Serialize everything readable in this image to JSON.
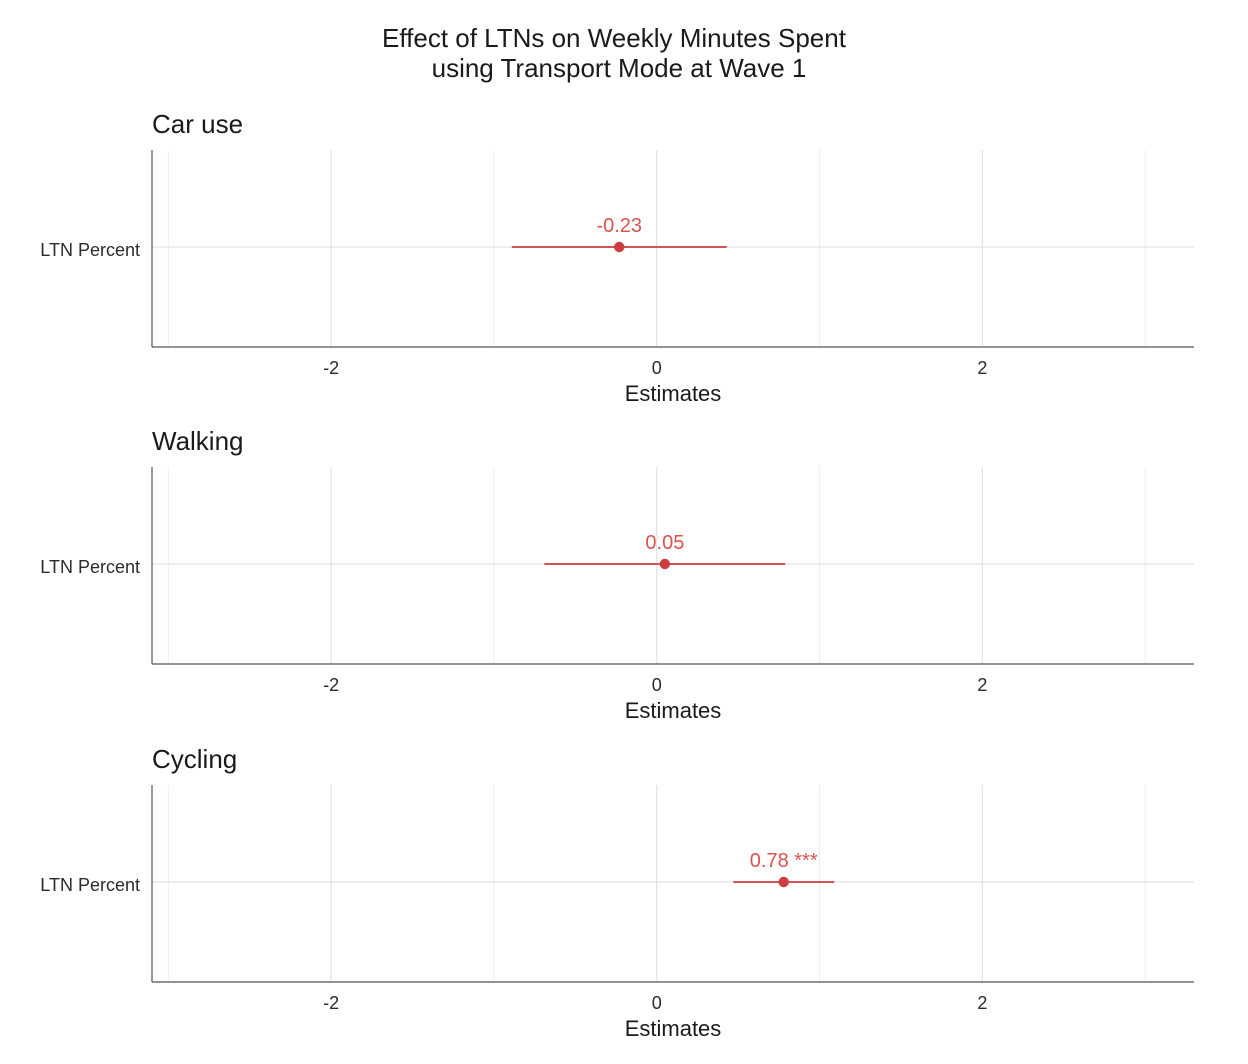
{
  "title_line1": "Effect of LTNs on Weekly Minutes Spent",
  "title_line2": "using Transport Mode at Wave 1",
  "colors": {
    "estimate": "#cc3d3d",
    "label": "#d9534f"
  },
  "chart_data": [
    {
      "type": "forest",
      "title": "Car use",
      "xlabel": "Estimates",
      "xlim": [
        -3.1,
        3.3
      ],
      "xticks": [
        -2,
        0,
        2
      ],
      "xtick_labels": [
        "-2",
        "0",
        "2"
      ],
      "grid": true,
      "terms": [
        {
          "name": "LTN Percent",
          "estimate": -0.23,
          "ci_low": -0.89,
          "ci_high": 0.43,
          "label": "-0.23"
        }
      ]
    },
    {
      "type": "forest",
      "title": "Walking",
      "xlabel": "Estimates",
      "xlim": [
        -3.1,
        3.3
      ],
      "xticks": [
        -2,
        0,
        2
      ],
      "xtick_labels": [
        "-2",
        "0",
        "2"
      ],
      "grid": true,
      "terms": [
        {
          "name": "LTN Percent",
          "estimate": 0.05,
          "ci_low": -0.69,
          "ci_high": 0.79,
          "label": "0.05"
        }
      ]
    },
    {
      "type": "forest",
      "title": "Cycling",
      "xlabel": "Estimates",
      "xlim": [
        -3.1,
        3.3
      ],
      "xticks": [
        -2,
        0,
        2
      ],
      "xtick_labels": [
        "-2",
        "0",
        "2"
      ],
      "grid": true,
      "terms": [
        {
          "name": "LTN Percent",
          "estimate": 0.78,
          "ci_low": 0.47,
          "ci_high": 1.09,
          "label": "0.78 ***"
        }
      ]
    }
  ]
}
